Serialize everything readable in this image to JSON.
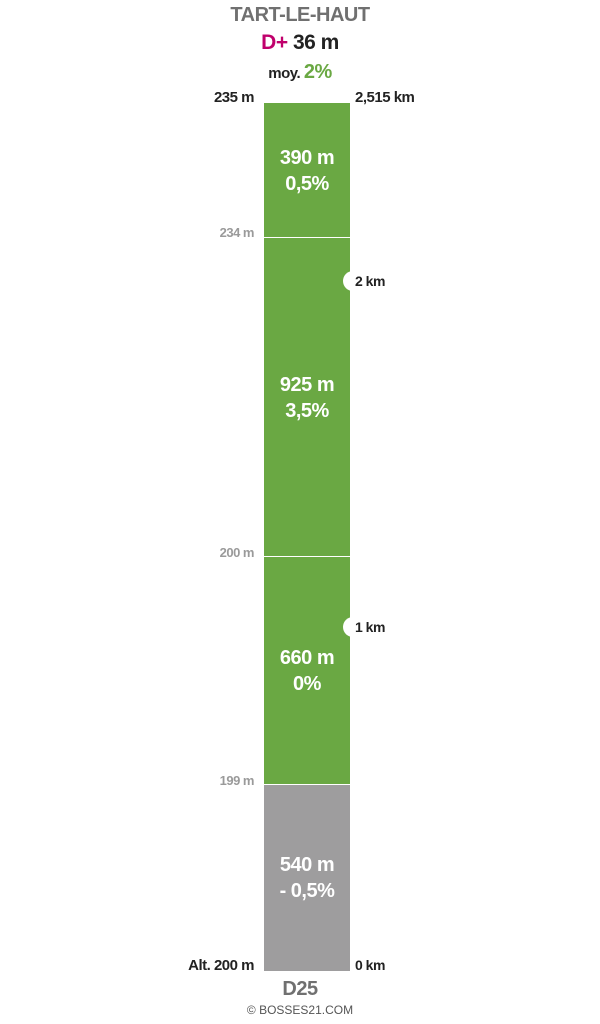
{
  "header": {
    "title": "TART-LE-HAUT",
    "dplus_label": "D+",
    "dplus_value": "36 m",
    "avg_label": "moy.",
    "avg_value": "2%"
  },
  "profile": {
    "start_altitude_label": "Alt. 200 m",
    "end_altitude_label": "235 m",
    "start_km_label": "0 km",
    "end_km_label": "2,515 km",
    "altitude_ticks": [
      "199 m",
      "200 m",
      "234 m"
    ],
    "km_markers": [
      "1 km",
      "2 km"
    ]
  },
  "chart_data": {
    "type": "bar",
    "title": "TART-LE-HAUT",
    "segments": [
      {
        "length_label": "540 m",
        "grade_label": "- 0,5%",
        "length_m": 540,
        "grade_pct": -0.5,
        "color": "#9e9d9e"
      },
      {
        "length_label": "660 m",
        "grade_label": "0%",
        "length_m": 660,
        "grade_pct": 0,
        "color": "#6aa843"
      },
      {
        "length_label": "925 m",
        "grade_label": "3,5%",
        "length_m": 925,
        "grade_pct": 3.5,
        "color": "#6aa843"
      },
      {
        "length_label": "390 m",
        "grade_label": "0,5%",
        "length_m": 390,
        "grade_pct": 0.5,
        "color": "#6aa843"
      }
    ],
    "total_km": 2.515,
    "altitude_start": 200,
    "altitude_end": 235,
    "elevation_gain": 36,
    "average_grade_pct": 2
  },
  "footer": {
    "road": "D25",
    "credit": "© BOSSES21.COM"
  },
  "colors": {
    "climb": "#6aa843",
    "descent": "#9e9d9e",
    "dplus": "#c0006c",
    "avg": "#6aa843"
  }
}
